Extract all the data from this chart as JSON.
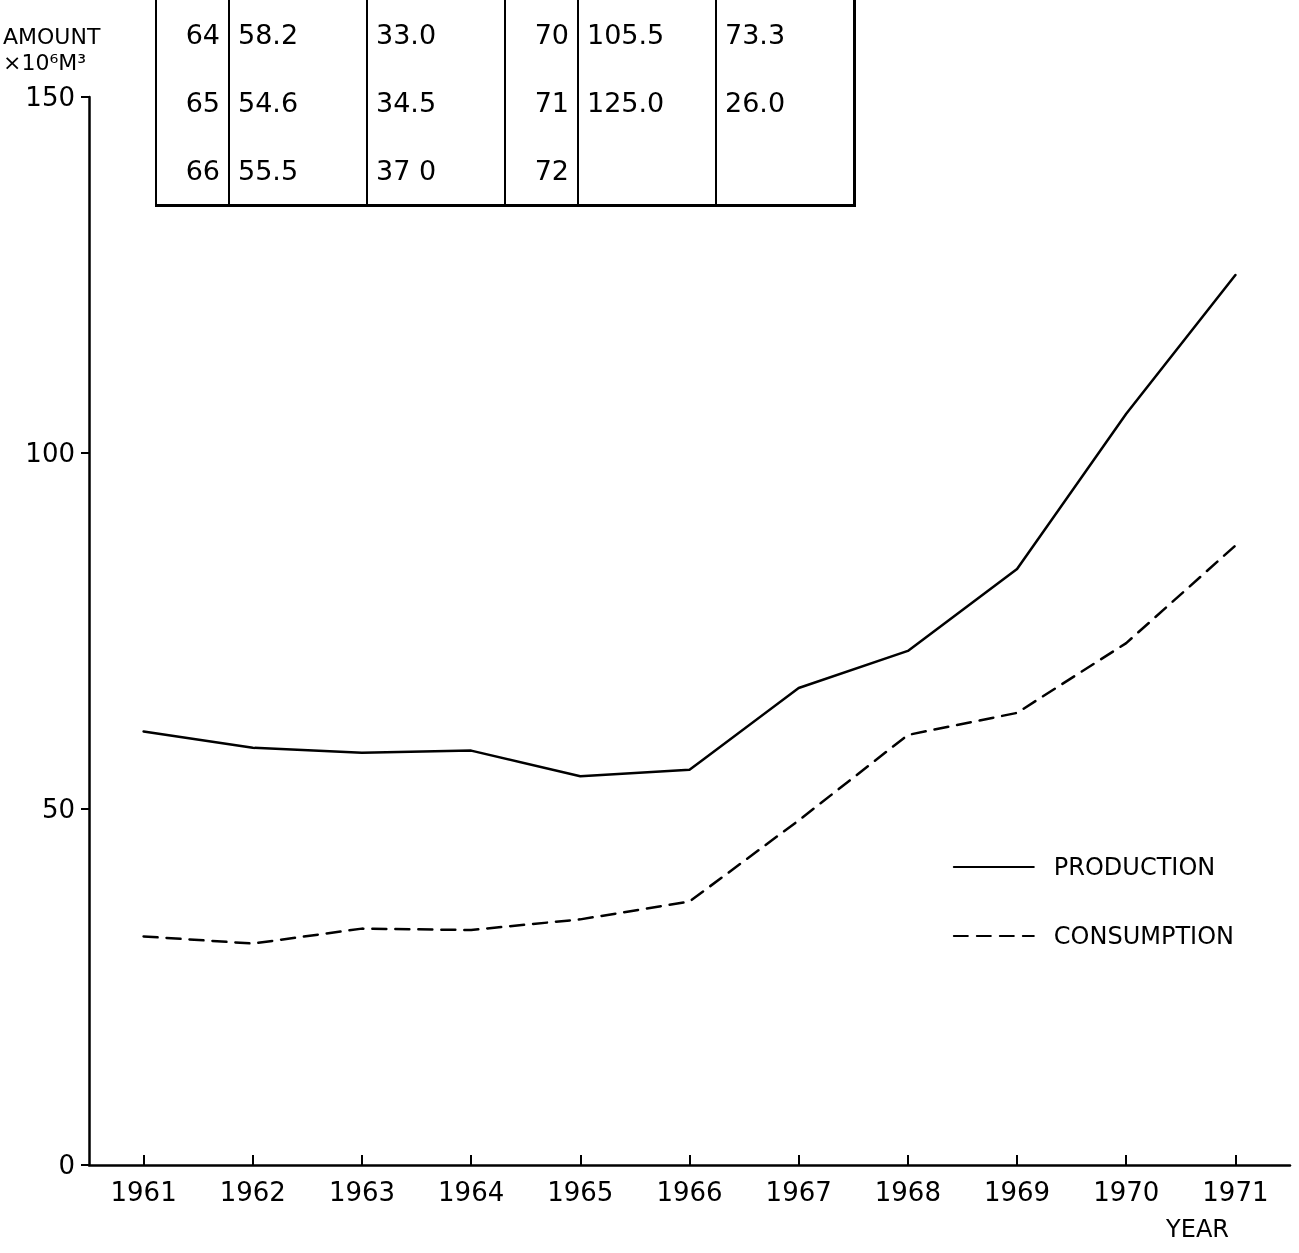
{
  "chart_data": {
    "type": "line",
    "ylabel": "AMOUNT\n×10⁶M³",
    "xlabel": "YEAR",
    "categories": [
      "1961",
      "1962",
      "1963",
      "1964",
      "1965",
      "1966",
      "1967",
      "1968",
      "1969",
      "1970",
      "1971"
    ],
    "series": [
      {
        "name": "PRODUCTION",
        "color": "#000000",
        "line_style": "solid",
        "values": [
          60.9,
          58.6,
          57.9,
          58.2,
          54.6,
          55.5,
          67,
          72.2,
          83.7,
          105.5,
          125.0
        ]
      },
      {
        "name": "CONSUMPTION",
        "color": "#000000",
        "line_style": "dashed",
        "values": [
          32.1,
          31.1,
          33.2,
          33.0,
          34.5,
          37.0,
          48.4,
          60.4,
          63.5,
          73.3,
          87
        ]
      }
    ],
    "ylim": [
      0,
      150
    ],
    "yticks": [
      0,
      50,
      100,
      150
    ],
    "grid": false,
    "legend": "right",
    "marker": "none",
    "annotations": [
      "64",
      "58.2",
      "33.0",
      "70",
      "105.5",
      "73.3",
      "65",
      "54.6",
      "34.5",
      "71",
      "125.0",
      "26.0",
      "66",
      "55.5",
      "37 0",
      "72"
    ]
  }
}
